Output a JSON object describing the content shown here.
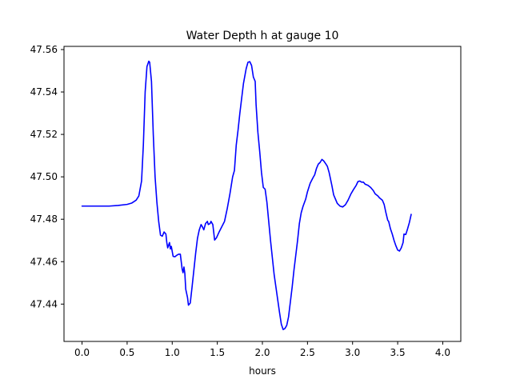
{
  "chart_data": {
    "type": "line",
    "title": "Water Depth h at gauge 10",
    "xlabel": "hours",
    "ylabel": "",
    "xlim": [
      -0.2,
      4.2
    ],
    "ylim": [
      47.4224,
      47.5615
    ],
    "grid": false,
    "legend": "none",
    "xticks": [
      0.0,
      0.5,
      1.0,
      1.5,
      2.0,
      2.5,
      3.0,
      3.5,
      4.0
    ],
    "xtick_labels": [
      "0.0",
      "0.5",
      "1.0",
      "1.5",
      "2.0",
      "2.5",
      "3.0",
      "3.5",
      "4.0"
    ],
    "yticks": [
      47.44,
      47.46,
      47.48,
      47.5,
      47.52,
      47.54,
      47.56
    ],
    "ytick_labels": [
      "47.44",
      "47.46",
      "47.48",
      "47.50",
      "47.52",
      "47.54",
      "47.56"
    ],
    "series": [
      {
        "name": "",
        "color": "#0000ff",
        "points": [
          [
            0.0,
            47.4862
          ],
          [
            0.1,
            47.4862
          ],
          [
            0.2,
            47.4862
          ],
          [
            0.3,
            47.4862
          ],
          [
            0.4,
            47.4865
          ],
          [
            0.5,
            47.487
          ],
          [
            0.55,
            47.4876
          ],
          [
            0.6,
            47.489
          ],
          [
            0.63,
            47.491
          ],
          [
            0.66,
            47.498
          ],
          [
            0.68,
            47.515
          ],
          [
            0.7,
            47.54
          ],
          [
            0.72,
            47.552
          ],
          [
            0.74,
            47.5545
          ],
          [
            0.75,
            47.554
          ],
          [
            0.77,
            47.545
          ],
          [
            0.79,
            47.52
          ],
          [
            0.81,
            47.5
          ],
          [
            0.83,
            47.488
          ],
          [
            0.85,
            47.479
          ],
          [
            0.87,
            47.4725
          ],
          [
            0.89,
            47.472
          ],
          [
            0.91,
            47.474
          ],
          [
            0.93,
            47.473
          ],
          [
            0.94,
            47.469
          ],
          [
            0.95,
            47.4665
          ],
          [
            0.97,
            47.469
          ],
          [
            0.98,
            47.466
          ],
          [
            0.99,
            47.4672
          ],
          [
            1.01,
            47.4625
          ],
          [
            1.03,
            47.4623
          ],
          [
            1.05,
            47.463
          ],
          [
            1.07,
            47.4635
          ],
          [
            1.09,
            47.4635
          ],
          [
            1.1,
            47.46
          ],
          [
            1.11,
            47.4565
          ],
          [
            1.12,
            47.4548
          ],
          [
            1.13,
            47.4575
          ],
          [
            1.14,
            47.4545
          ],
          [
            1.15,
            47.447
          ],
          [
            1.17,
            47.443
          ],
          [
            1.18,
            47.4395
          ],
          [
            1.2,
            47.4405
          ],
          [
            1.22,
            47.448
          ],
          [
            1.24,
            47.456
          ],
          [
            1.26,
            47.464
          ],
          [
            1.28,
            47.471
          ],
          [
            1.3,
            47.475
          ],
          [
            1.32,
            47.4775
          ],
          [
            1.34,
            47.476
          ],
          [
            1.35,
            47.475
          ],
          [
            1.37,
            47.478
          ],
          [
            1.39,
            47.479
          ],
          [
            1.4,
            47.4775
          ],
          [
            1.42,
            47.478
          ],
          [
            1.43,
            47.479
          ],
          [
            1.45,
            47.4775
          ],
          [
            1.46,
            47.474
          ],
          [
            1.47,
            47.4702
          ],
          [
            1.49,
            47.4712
          ],
          [
            1.52,
            47.474
          ],
          [
            1.55,
            47.4765
          ],
          [
            1.58,
            47.479
          ],
          [
            1.61,
            47.485
          ],
          [
            1.64,
            47.492
          ],
          [
            1.67,
            47.5
          ],
          [
            1.69,
            47.503
          ],
          [
            1.71,
            47.515
          ],
          [
            1.73,
            47.522
          ],
          [
            1.75,
            47.53
          ],
          [
            1.77,
            47.537
          ],
          [
            1.79,
            47.544
          ],
          [
            1.82,
            47.551
          ],
          [
            1.84,
            47.554
          ],
          [
            1.86,
            47.5543
          ],
          [
            1.88,
            47.5525
          ],
          [
            1.9,
            47.547
          ],
          [
            1.91,
            47.546
          ],
          [
            1.92,
            47.545
          ],
          [
            1.93,
            47.534
          ],
          [
            1.95,
            47.521
          ],
          [
            1.97,
            47.512
          ],
          [
            1.99,
            47.502
          ],
          [
            2.01,
            47.495
          ],
          [
            2.03,
            47.4942
          ],
          [
            2.05,
            47.488
          ],
          [
            2.07,
            47.479
          ],
          [
            2.09,
            47.47
          ],
          [
            2.11,
            47.462
          ],
          [
            2.13,
            47.454
          ],
          [
            2.15,
            47.448
          ],
          [
            2.17,
            47.442
          ],
          [
            2.19,
            47.436
          ],
          [
            2.21,
            47.4305
          ],
          [
            2.23,
            47.428
          ],
          [
            2.25,
            47.4285
          ],
          [
            2.27,
            47.43
          ],
          [
            2.29,
            47.434
          ],
          [
            2.31,
            47.441
          ],
          [
            2.33,
            47.448
          ],
          [
            2.35,
            47.456
          ],
          [
            2.37,
            47.463
          ],
          [
            2.39,
            47.47
          ],
          [
            2.41,
            47.478
          ],
          [
            2.43,
            47.483
          ],
          [
            2.45,
            47.486
          ],
          [
            2.48,
            47.4895
          ],
          [
            2.5,
            47.493
          ],
          [
            2.53,
            47.497
          ],
          [
            2.56,
            47.4995
          ],
          [
            2.58,
            47.501
          ],
          [
            2.6,
            47.504
          ],
          [
            2.62,
            47.506
          ],
          [
            2.64,
            47.5068
          ],
          [
            2.66,
            47.5082
          ],
          [
            2.68,
            47.5075
          ],
          [
            2.7,
            47.5063
          ],
          [
            2.72,
            47.505
          ],
          [
            2.74,
            47.502
          ],
          [
            2.77,
            47.496
          ],
          [
            2.79,
            47.4915
          ],
          [
            2.81,
            47.4895
          ],
          [
            2.83,
            47.4875
          ],
          [
            2.86,
            47.4862
          ],
          [
            2.89,
            47.4858
          ],
          [
            2.92,
            47.4868
          ],
          [
            2.95,
            47.489
          ],
          [
            2.98,
            47.4918
          ],
          [
            3.01,
            47.494
          ],
          [
            3.04,
            47.496
          ],
          [
            3.06,
            47.4978
          ],
          [
            3.08,
            47.498
          ],
          [
            3.1,
            47.4975
          ],
          [
            3.12,
            47.4975
          ],
          [
            3.14,
            47.4965
          ],
          [
            3.17,
            47.496
          ],
          [
            3.2,
            47.495
          ],
          [
            3.23,
            47.4935
          ],
          [
            3.25,
            47.492
          ],
          [
            3.28,
            47.491
          ],
          [
            3.3,
            47.49
          ],
          [
            3.33,
            47.489
          ],
          [
            3.35,
            47.487
          ],
          [
            3.37,
            47.483
          ],
          [
            3.39,
            47.4795
          ],
          [
            3.4,
            47.479
          ],
          [
            3.42,
            47.4755
          ],
          [
            3.44,
            47.473
          ],
          [
            3.46,
            47.47
          ],
          [
            3.48,
            47.4675
          ],
          [
            3.5,
            47.4655
          ],
          [
            3.52,
            47.465
          ],
          [
            3.54,
            47.4665
          ],
          [
            3.56,
            47.469
          ],
          [
            3.57,
            47.473
          ],
          [
            3.59,
            47.4728
          ],
          [
            3.61,
            47.4755
          ],
          [
            3.63,
            47.4785
          ],
          [
            3.65,
            47.4823
          ]
        ]
      }
    ]
  }
}
